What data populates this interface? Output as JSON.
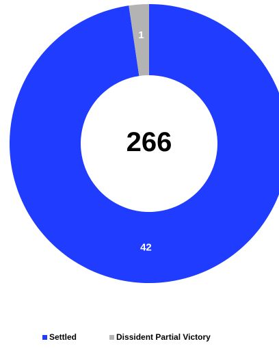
{
  "chart_data": {
    "type": "pie",
    "style": "donut",
    "center_label": "266",
    "slices": [
      {
        "name": "Settled",
        "value": 42,
        "label": "42",
        "color": "#1f3cff"
      },
      {
        "name": "Dissident Partial Victory",
        "value": 1,
        "label": "1",
        "color": "#b3b3b3"
      }
    ],
    "legend_position": "bottom"
  }
}
